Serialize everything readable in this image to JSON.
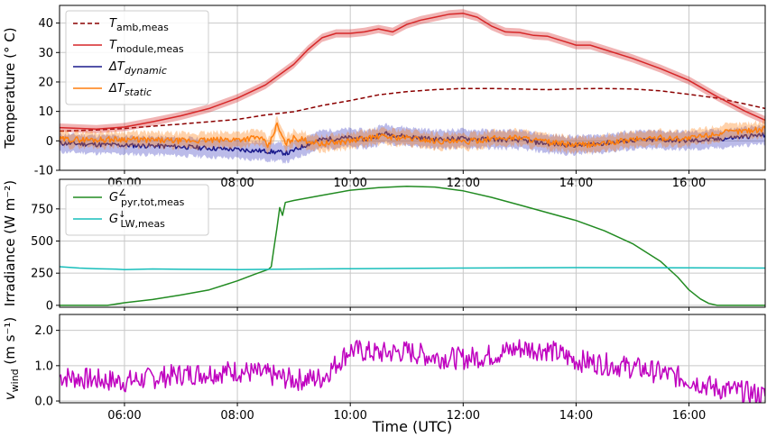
{
  "figure": {
    "xlabel": "Time (UTC)"
  },
  "chart_data": [
    {
      "type": "line",
      "ylabel": "Temperature (° C)",
      "xlim": [
        4.85,
        17.35
      ],
      "ylim": [
        -10,
        46
      ],
      "yticks": [
        -10,
        0,
        10,
        20,
        30,
        40
      ],
      "xticks": [
        "06:00",
        "08:00",
        "10:00",
        "12:00",
        "14:00",
        "16:00"
      ],
      "grid": true,
      "legend": "top-left",
      "series": [
        {
          "name": "T_amb,meas",
          "color": "#8b0000",
          "dash": true,
          "points": [
            [
              4.85,
              3.3
            ],
            [
              5.5,
              3.7
            ],
            [
              6,
              4.2
            ],
            [
              6.5,
              5
            ],
            [
              7,
              5.7
            ],
            [
              7.5,
              6.5
            ],
            [
              8,
              7.3
            ],
            [
              8.5,
              8.8
            ],
            [
              9,
              9.9
            ],
            [
              9.5,
              12
            ],
            [
              10,
              13.7
            ],
            [
              10.5,
              15.6
            ],
            [
              11,
              16.7
            ],
            [
              11.5,
              17.4
            ],
            [
              12,
              17.8
            ],
            [
              12.5,
              17.8
            ],
            [
              13,
              17.6
            ],
            [
              13.5,
              17.4
            ],
            [
              14,
              17.7
            ],
            [
              14.5,
              17.8
            ],
            [
              15,
              17.6
            ],
            [
              15.5,
              17
            ],
            [
              16,
              15.8
            ],
            [
              16.5,
              14.5
            ],
            [
              17,
              12.5
            ],
            [
              17.35,
              11
            ]
          ]
        },
        {
          "name": "T_module,meas",
          "color": "#d62728",
          "band": 1.4,
          "points": [
            [
              4.85,
              4.5
            ],
            [
              5.5,
              4
            ],
            [
              6,
              4.7
            ],
            [
              6.5,
              6.5
            ],
            [
              7,
              8.5
            ],
            [
              7.5,
              11
            ],
            [
              8,
              14.5
            ],
            [
              8.5,
              19
            ],
            [
              9,
              26
            ],
            [
              9.25,
              31
            ],
            [
              9.5,
              35
            ],
            [
              9.75,
              36.5
            ],
            [
              10,
              36.5
            ],
            [
              10.25,
              37
            ],
            [
              10.5,
              38
            ],
            [
              10.75,
              37
            ],
            [
              11,
              39.5
            ],
            [
              11.25,
              41
            ],
            [
              11.5,
              42
            ],
            [
              11.75,
              43
            ],
            [
              12,
              43.3
            ],
            [
              12.25,
              42
            ],
            [
              12.5,
              39
            ],
            [
              12.75,
              37
            ],
            [
              13,
              36.8
            ],
            [
              13.25,
              35.8
            ],
            [
              13.5,
              35.5
            ],
            [
              13.75,
              34
            ],
            [
              14,
              32.5
            ],
            [
              14.25,
              32.5
            ],
            [
              14.5,
              31
            ],
            [
              15,
              28
            ],
            [
              15.5,
              24.5
            ],
            [
              16,
              20.5
            ],
            [
              16.5,
              15
            ],
            [
              17,
              10
            ],
            [
              17.35,
              7
            ]
          ]
        },
        {
          "name": "ΔT_dynamic",
          "color": "#1a1a8c",
          "band": 3,
          "bandColor": "#3b3bbf",
          "seed": 11,
          "noise": 0.8,
          "points": [
            [
              4.85,
              -0.8
            ],
            [
              5.5,
              -1.2
            ],
            [
              6,
              -1.5
            ],
            [
              6.5,
              -1.7
            ],
            [
              7,
              -2
            ],
            [
              7.5,
              -2.5
            ],
            [
              8,
              -3
            ],
            [
              8.5,
              -3.5
            ],
            [
              8.9,
              -4.2
            ],
            [
              9.2,
              -1.5
            ],
            [
              9.5,
              0.5
            ],
            [
              10,
              1
            ],
            [
              10.3,
              0.5
            ],
            [
              10.6,
              2.5
            ],
            [
              11,
              1.5
            ],
            [
              11.5,
              0.5
            ],
            [
              12,
              0.8
            ],
            [
              12.5,
              0.5
            ],
            [
              13,
              0.3
            ],
            [
              13.5,
              -1
            ],
            [
              14,
              -1.5
            ],
            [
              14.5,
              -0.8
            ],
            [
              15,
              0.2
            ],
            [
              15.5,
              0.3
            ],
            [
              16,
              0
            ],
            [
              16.5,
              0.5
            ],
            [
              17,
              1.5
            ],
            [
              17.35,
              2
            ]
          ]
        },
        {
          "name": "ΔT_static",
          "color": "#ff7f0e",
          "band": 2.5,
          "seed": 29,
          "noise": 1,
          "points": [
            [
              4.85,
              0.5
            ],
            [
              5.5,
              0.4
            ],
            [
              6,
              0.6
            ],
            [
              6.5,
              0.2
            ],
            [
              7,
              0
            ],
            [
              7.5,
              0.2
            ],
            [
              8,
              0.5
            ],
            [
              8.4,
              1.2
            ],
            [
              8.55,
              -2
            ],
            [
              8.7,
              5.5
            ],
            [
              8.85,
              -1
            ],
            [
              9,
              1
            ],
            [
              9.5,
              -1
            ],
            [
              10,
              0
            ],
            [
              10.5,
              1.5
            ],
            [
              11,
              1
            ],
            [
              11.5,
              0
            ],
            [
              12,
              -0.5
            ],
            [
              12.5,
              0.8
            ],
            [
              13,
              1.2
            ],
            [
              13.5,
              -0.5
            ],
            [
              14,
              -1.5
            ],
            [
              14.5,
              -1
            ],
            [
              15,
              0.5
            ],
            [
              15.5,
              1
            ],
            [
              16,
              0.8
            ],
            [
              16.5,
              2.5
            ],
            [
              17,
              3.5
            ],
            [
              17.35,
              4
            ]
          ]
        }
      ]
    },
    {
      "type": "line",
      "ylabel": "Irradiance (W m⁻²)",
      "xlim": [
        4.85,
        17.35
      ],
      "ylim": [
        -15,
        980
      ],
      "yticks": [
        0,
        250,
        500,
        750
      ],
      "grid": true,
      "legend": "top-left",
      "series": [
        {
          "name": "G∠pyr,tot,meas",
          "color": "#228b22",
          "points": [
            [
              4.85,
              0
            ],
            [
              5.7,
              0
            ],
            [
              6,
              20
            ],
            [
              6.5,
              45
            ],
            [
              7,
              80
            ],
            [
              7.5,
              120
            ],
            [
              8,
              190
            ],
            [
              8.3,
              240
            ],
            [
              8.55,
              280
            ],
            [
              8.6,
              300
            ],
            [
              8.65,
              450
            ],
            [
              8.7,
              600
            ],
            [
              8.75,
              760
            ],
            [
              8.8,
              700
            ],
            [
              8.85,
              800
            ],
            [
              9,
              815
            ],
            [
              9.5,
              855
            ],
            [
              10,
              895
            ],
            [
              10.5,
              915
            ],
            [
              11,
              925
            ],
            [
              11.5,
              920
            ],
            [
              12,
              890
            ],
            [
              12.5,
              840
            ],
            [
              13,
              780
            ],
            [
              13.5,
              720
            ],
            [
              14,
              660
            ],
            [
              14.5,
              580
            ],
            [
              15,
              480
            ],
            [
              15.5,
              340
            ],
            [
              15.8,
              220
            ],
            [
              16,
              120
            ],
            [
              16.2,
              50
            ],
            [
              16.35,
              15
            ],
            [
              16.5,
              0
            ],
            [
              17.35,
              0
            ]
          ]
        },
        {
          "name": "G↓LW,meas",
          "color": "#17bebb",
          "points": [
            [
              4.85,
              300
            ],
            [
              5.2,
              290
            ],
            [
              5.5,
              285
            ],
            [
              5.8,
              282
            ],
            [
              6,
              278
            ],
            [
              6.5,
              283
            ],
            [
              7,
              280
            ],
            [
              8,
              278
            ],
            [
              9,
              282
            ],
            [
              10,
              285
            ],
            [
              12,
              290
            ],
            [
              14,
              293
            ],
            [
              16,
              292
            ],
            [
              17.35,
              290
            ]
          ]
        }
      ]
    },
    {
      "type": "line",
      "ylabel": "v_wind (m s⁻¹)",
      "xlim": [
        4.85,
        17.35
      ],
      "ylim": [
        -0.05,
        2.45
      ],
      "yticks": [
        0.0,
        1.0,
        2.0
      ],
      "ytickLabels": [
        "0.0",
        "1.0",
        "2.0"
      ],
      "grid": true,
      "series": [
        {
          "name": "v_wind",
          "color": "#bf00bf",
          "seed": 7,
          "noise": 0.32,
          "points": [
            [
              4.85,
              0.7
            ],
            [
              5.5,
              0.6
            ],
            [
              6,
              0.55
            ],
            [
              6.5,
              0.65
            ],
            [
              7,
              0.75
            ],
            [
              7.5,
              0.8
            ],
            [
              8,
              0.85
            ],
            [
              8.5,
              0.75
            ],
            [
              9,
              0.6
            ],
            [
              9.5,
              0.65
            ],
            [
              10,
              1.45
            ],
            [
              10.5,
              1.35
            ],
            [
              11,
              1.4
            ],
            [
              11.5,
              1.25
            ],
            [
              12,
              1.2
            ],
            [
              12.5,
              1.3
            ],
            [
              13,
              1.5
            ],
            [
              13.5,
              1.45
            ],
            [
              14,
              1.15
            ],
            [
              14.5,
              1.05
            ],
            [
              15,
              0.95
            ],
            [
              15.5,
              0.8
            ],
            [
              16,
              0.6
            ],
            [
              16.5,
              0.35
            ],
            [
              17,
              0.25
            ],
            [
              17.35,
              0.15
            ]
          ]
        }
      ]
    }
  ]
}
